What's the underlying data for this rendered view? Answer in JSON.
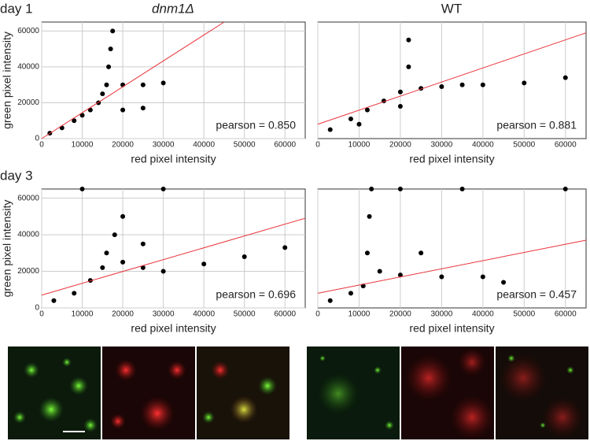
{
  "labels": {
    "day1": "day 1",
    "day3": "day 3",
    "col1": "dnm1Δ",
    "col2": "WT"
  },
  "chart_data": [
    {
      "type": "scatter",
      "x_label": "red pixel intensity",
      "y_label": "green pixel intensity",
      "annotation": "pearson = 0.850",
      "xlim": [
        0,
        65000
      ],
      "ylim": [
        0,
        65000
      ],
      "xticks": [
        0,
        10000,
        20000,
        30000,
        40000,
        50000,
        60000
      ],
      "yticks": [
        0,
        20000,
        40000,
        60000
      ],
      "grid": true,
      "x": [
        2000,
        5000,
        8000,
        10000,
        12000,
        14000,
        15000,
        16000,
        16500,
        17000,
        17500,
        20000,
        25000,
        30000,
        20000,
        25000
      ],
      "y": [
        3000,
        6000,
        10000,
        13000,
        16000,
        20000,
        25000,
        30000,
        40000,
        50000,
        60000,
        30000,
        30000,
        31000,
        16000,
        17000
      ],
      "color": "#000000",
      "fit": {
        "x": [
          0,
          45000
        ],
        "y": [
          0,
          65000
        ],
        "color": "#e8333a"
      }
    },
    {
      "type": "scatter",
      "x_label": "red pixel intensity",
      "annotation": "pearson = 0.881",
      "xlim": [
        0,
        65000
      ],
      "ylim": [
        0,
        65000
      ],
      "xticks": [
        0,
        10000,
        20000,
        30000,
        40000,
        50000,
        60000
      ],
      "grid": true,
      "x": [
        3000,
        8000,
        12000,
        16000,
        20000,
        22000,
        22000,
        25000,
        30000,
        35000,
        40000,
        50000,
        60000,
        10000,
        20000
      ],
      "y": [
        5000,
        11000,
        16000,
        21000,
        26000,
        40000,
        55000,
        28000,
        29000,
        30000,
        30000,
        31000,
        34000,
        8000,
        18000
      ],
      "color": "#000000",
      "fit": {
        "x": [
          0,
          65000
        ],
        "y": [
          8000,
          59000
        ],
        "color": "#e8333a"
      }
    },
    {
      "type": "scatter",
      "x_label": "red pixel intensity",
      "y_label": "green pixel intensity",
      "annotation": "pearson = 0.696",
      "xlim": [
        0,
        65000
      ],
      "ylim": [
        0,
        65000
      ],
      "xticks": [
        0,
        10000,
        20000,
        30000,
        40000,
        50000,
        60000
      ],
      "yticks": [
        0,
        20000,
        40000,
        60000
      ],
      "grid": true,
      "x": [
        3000,
        8000,
        12000,
        15000,
        16000,
        18000,
        20000,
        20000,
        25000,
        30000,
        40000,
        50000,
        60000,
        10000,
        30000,
        25000
      ],
      "y": [
        4000,
        8000,
        15000,
        22000,
        30000,
        40000,
        50000,
        25000,
        22000,
        20000,
        24000,
        28000,
        33000,
        65000,
        65000,
        35000
      ],
      "color": "#000000",
      "fit": {
        "x": [
          0,
          65000
        ],
        "y": [
          7000,
          49000
        ],
        "color": "#e8333a"
      }
    },
    {
      "type": "scatter",
      "x_label": "red pixel intensity",
      "annotation": "pearson = 0.457",
      "xlim": [
        0,
        65000
      ],
      "ylim": [
        0,
        65000
      ],
      "xticks": [
        0,
        10000,
        20000,
        30000,
        40000,
        50000,
        60000
      ],
      "grid": true,
      "x": [
        3000,
        8000,
        11000,
        12000,
        12500,
        13000,
        15000,
        20000,
        30000,
        40000,
        45000,
        25000,
        20000,
        35000,
        60000
      ],
      "y": [
        4000,
        8000,
        12000,
        30000,
        50000,
        65000,
        20000,
        18000,
        17000,
        17000,
        14000,
        30000,
        65000,
        65000,
        65000
      ],
      "color": "#000000",
      "fit": {
        "x": [
          0,
          65000
        ],
        "y": [
          8000,
          37000
        ],
        "color": "#e8333a"
      }
    }
  ]
}
